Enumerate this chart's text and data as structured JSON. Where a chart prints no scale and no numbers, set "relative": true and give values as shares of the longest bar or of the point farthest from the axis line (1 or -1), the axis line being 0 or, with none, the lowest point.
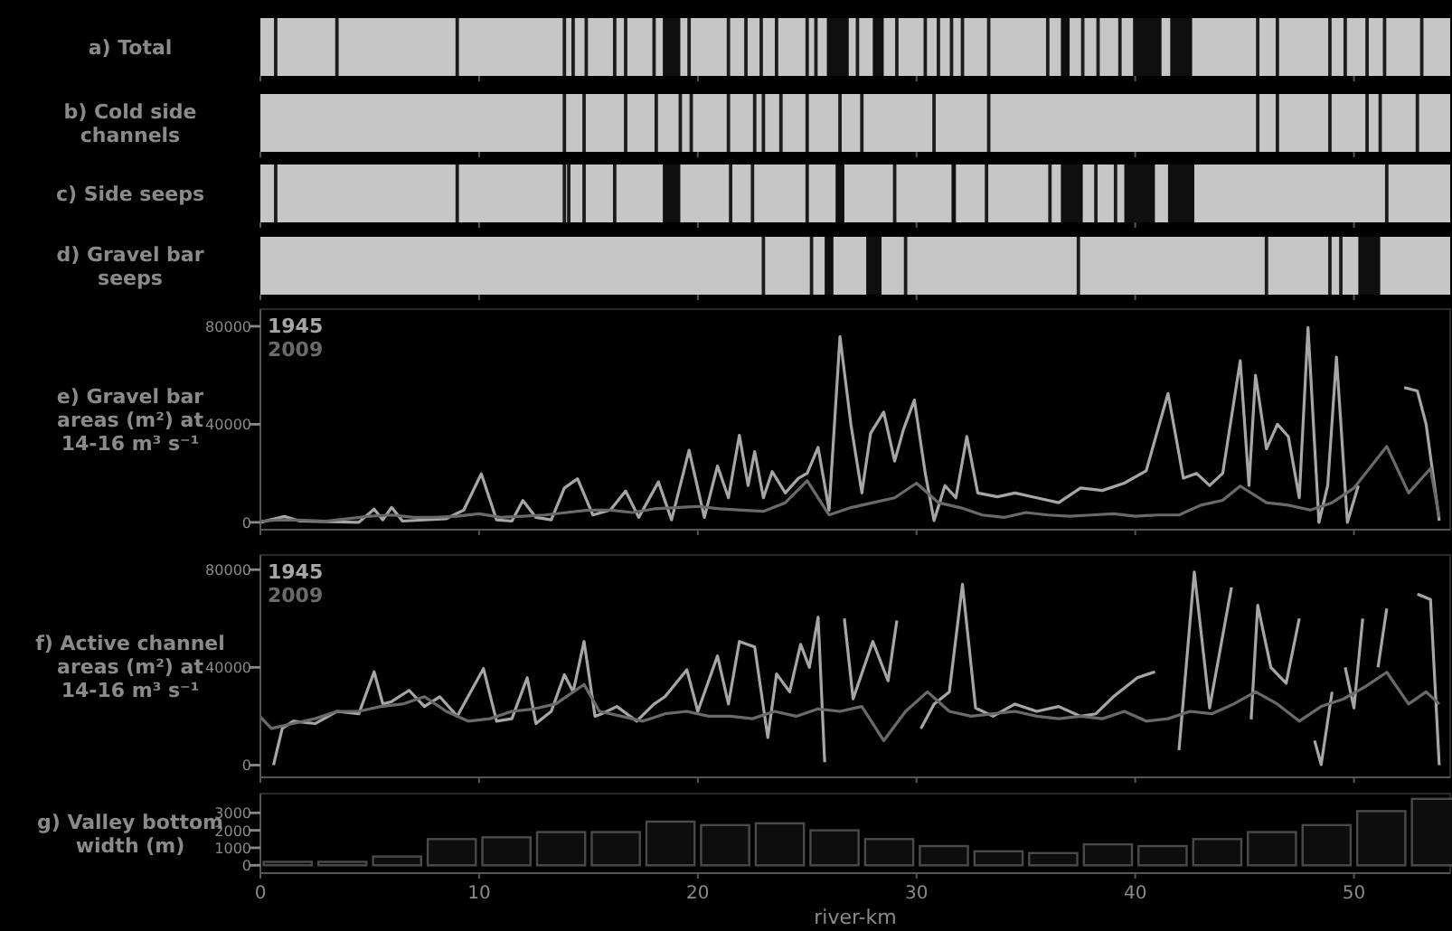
{
  "chart_data": [
    {
      "type": "bar",
      "relative": true,
      "ylabel": "a) Total",
      "xlim": [
        0,
        54.4
      ],
      "xticks": [
        0,
        10,
        20,
        30,
        40,
        50
      ],
      "tick_labels": false,
      "color": "#1c1c1c",
      "x": [
        0.7,
        3.5,
        9.0,
        13.9,
        14.3,
        14.9,
        16.2,
        16.7,
        18.0,
        19.6,
        21.4,
        22.2,
        22.9,
        23.6,
        25.0,
        25.4,
        27.3,
        29.1,
        30.4,
        31.0,
        31.6,
        32.1,
        33.3,
        36.0,
        37.6,
        38.3,
        39.3,
        45.6,
        46.5,
        48.9,
        49.6,
        50.6,
        51.4,
        53.1
      ],
      "values": [
        1,
        1,
        1,
        1,
        1,
        1,
        1,
        1,
        1,
        1,
        1,
        1,
        1,
        1,
        1,
        1,
        1,
        1,
        1,
        1,
        1,
        1,
        1,
        1,
        1,
        1,
        1,
        1,
        1,
        1,
        1,
        1,
        1,
        1
      ],
      "bands": [
        {
          "axis": "x",
          "from": 18.4,
          "to": 19.2,
          "color": "#050505"
        },
        {
          "axis": "x",
          "from": 25.9,
          "to": 26.9,
          "color": "#050505"
        },
        {
          "axis": "x",
          "from": 28.0,
          "to": 28.5,
          "color": "#050505"
        },
        {
          "axis": "x",
          "from": 36.6,
          "to": 37.0,
          "color": "#050505"
        },
        {
          "axis": "x",
          "from": 39.9,
          "to": 41.2,
          "color": "#050505"
        },
        {
          "axis": "x",
          "from": 41.6,
          "to": 42.6,
          "color": "#050505"
        }
      ]
    },
    {
      "type": "bar",
      "relative": true,
      "ylabel": "b) Cold side channels",
      "xlim": [
        0,
        54.4
      ],
      "xticks": [
        0,
        10,
        20,
        30,
        40,
        50
      ],
      "tick_labels": false,
      "color": "#1c1c1c",
      "x": [
        13.9,
        14.8,
        16.7,
        18.1,
        19.2,
        19.7,
        21.4,
        22.6,
        23.0,
        23.8,
        25.0,
        26.5,
        27.5,
        30.8,
        33.3,
        45.6,
        46.5,
        48.9,
        50.6,
        51.2,
        52.9
      ],
      "values": [
        1,
        1,
        1,
        1,
        1,
        1,
        1,
        1,
        1,
        1,
        1,
        1,
        1,
        1,
        1,
        1,
        1,
        1,
        1,
        1,
        1
      ]
    },
    {
      "type": "bar",
      "relative": true,
      "ylabel": "c) Side seeps",
      "xlim": [
        0,
        54.4
      ],
      "xticks": [
        0,
        10,
        20,
        30,
        40,
        50
      ],
      "tick_labels": false,
      "color": "#1c1c1c",
      "x": [
        0.7,
        9.0,
        13.9,
        14.1,
        14.8,
        16.2,
        21.5,
        22.5,
        25.0,
        29.0,
        33.2,
        36.1,
        38.2,
        39.1,
        51.5
      ],
      "values": [
        1,
        1,
        1,
        1,
        1,
        1,
        1,
        1,
        1,
        1,
        1,
        1,
        1,
        1,
        1
      ],
      "bands": [
        {
          "axis": "x",
          "from": 18.4,
          "to": 19.2,
          "color": "#050505"
        },
        {
          "axis": "x",
          "from": 26.3,
          "to": 26.7,
          "color": "#050505"
        },
        {
          "axis": "x",
          "from": 31.6,
          "to": 31.8,
          "color": "#050505"
        },
        {
          "axis": "x",
          "from": 36.6,
          "to": 37.6,
          "color": "#050505"
        },
        {
          "axis": "x",
          "from": 39.5,
          "to": 40.9,
          "color": "#050505"
        },
        {
          "axis": "x",
          "from": 41.5,
          "to": 42.7,
          "color": "#050505"
        }
      ]
    },
    {
      "type": "bar",
      "relative": true,
      "ylabel": "d) Gravel bar seeps",
      "xlim": [
        0,
        54.4
      ],
      "xticks": [
        0,
        10,
        20,
        30,
        40,
        50
      ],
      "tick_labels": false,
      "color": "#1c1c1c",
      "x": [
        23.0,
        25.2,
        29.5,
        37.4,
        46.0,
        48.9,
        49.4
      ],
      "values": [
        1,
        1,
        1,
        1,
        1,
        1,
        1
      ],
      "bands": [
        {
          "axis": "x",
          "from": 25.8,
          "to": 26.2,
          "color": "#050505"
        },
        {
          "axis": "x",
          "from": 27.7,
          "to": 28.4,
          "color": "#050505"
        },
        {
          "axis": "x",
          "from": 50.2,
          "to": 51.2,
          "color": "#050505"
        }
      ]
    },
    {
      "type": "line",
      "ylabel": "e) Gravel bar areas (m²) at 14-16 m³ s⁻¹",
      "xlim": [
        0,
        54.4
      ],
      "xticks": [
        0,
        10,
        20,
        30,
        40,
        50
      ],
      "ylim": [
        -3000,
        87000
      ],
      "yticks": [
        0,
        40000,
        80000
      ],
      "tick_labels": "y",
      "legend": "top left",
      "marker": "none",
      "line_style": "solid",
      "series": [
        {
          "name": "1945",
          "color": "#a6a6a6",
          "x": [
            0,
            1.1,
            1.8,
            4.5,
            5.2,
            5.6,
            6.0,
            6.5,
            8.5,
            9.3,
            10.1,
            10.8,
            11.5,
            12.0,
            12.6,
            13.3,
            13.9,
            14.5,
            15.2,
            16.0,
            16.7,
            17.3,
            18.2,
            18.8,
            19.6,
            20.3,
            20.9,
            21.4,
            21.9,
            22.3,
            22.6,
            23.0,
            23.4,
            24.0,
            24.6,
            25.0,
            25.5,
            26.0,
            26.5,
            27.0,
            27.5,
            27.9,
            28.5,
            29.0,
            29.4,
            29.9,
            30.4,
            30.8,
            31.3,
            31.8,
            32.3,
            32.8,
            33.7,
            34.5,
            35.5,
            36.5,
            37.5,
            38.5,
            39.5,
            40.5,
            41.5,
            42.2,
            42.8,
            43.4,
            44.0,
            44.8,
            45.2,
            45.5,
            46.0,
            46.5,
            47.0,
            47.5,
            47.9,
            48.4,
            48.8,
            49.2,
            49.7,
            50.2,
            50.6,
            51.0,
            51.5,
            51.9,
            52.3,
            52.9,
            53.3,
            53.9
          ],
          "values": [
            0,
            2400,
            500,
            0,
            5400,
            1000,
            6100,
            500,
            1500,
            5000,
            19800,
            1000,
            500,
            8900,
            2000,
            1000,
            14000,
            17800,
            3000,
            5000,
            12800,
            2000,
            16500,
            1000,
            29400,
            2000,
            23000,
            10000,
            35500,
            15000,
            28900,
            10000,
            20700,
            12000,
            18000,
            20000,
            30600,
            5000,
            75800,
            40000,
            12000,
            36300,
            45000,
            25000,
            37800,
            49900,
            20000,
            700,
            15000,
            10000,
            35000,
            12000,
            10400,
            12000,
            10000,
            8000,
            14000,
            13000,
            16000,
            21000,
            52600,
            18000,
            20000,
            15000,
            20000,
            65900,
            15000,
            60000,
            30000,
            40000,
            35000,
            10000,
            79500,
            0,
            15000,
            67400,
            0,
            15000,
            null,
            null,
            null,
            null,
            55000,
            53600,
            40000,
            700
          ]
        },
        {
          "name": "2009",
          "color": "#6a6a6a",
          "x": [
            0,
            1,
            2,
            3,
            4,
            5,
            6,
            7,
            8,
            9,
            10,
            11,
            12,
            13,
            14,
            15,
            16,
            17,
            18,
            19,
            20,
            21,
            22,
            23,
            24,
            25,
            26,
            27,
            28,
            29,
            30,
            31,
            32,
            33,
            34,
            35,
            36,
            37,
            38,
            39,
            40,
            41,
            42,
            43,
            44,
            44.8,
            46,
            47,
            48,
            49,
            50,
            51.5,
            52.5,
            53.5,
            53.9
          ],
          "values": [
            500,
            1000,
            800,
            500,
            1500,
            2500,
            3000,
            2000,
            2000,
            2500,
            3500,
            2000,
            2500,
            3000,
            4000,
            5000,
            5000,
            4000,
            5500,
            6000,
            6500,
            5500,
            5000,
            4500,
            8000,
            17000,
            3000,
            6000,
            8000,
            10000,
            16000,
            8000,
            6000,
            3000,
            2000,
            4000,
            3000,
            2500,
            3000,
            3500,
            2500,
            3000,
            3000,
            7000,
            9000,
            14800,
            8000,
            7000,
            5000,
            8000,
            14000,
            31000,
            12000,
            22000,
            2000
          ]
        }
      ]
    },
    {
      "type": "line",
      "ylabel": "f) Active channel areas (m²) at 14-16 m³ s⁻¹",
      "xlim": [
        0,
        54.4
      ],
      "xticks": [
        0,
        10,
        20,
        30,
        40,
        50
      ],
      "ylim": [
        -5000,
        86000
      ],
      "yticks": [
        0,
        40000,
        80000
      ],
      "tick_labels": "y",
      "legend": "top left",
      "marker": "none",
      "line_style": "solid",
      "series": [
        {
          "name": "1945",
          "color": "#a6a6a6",
          "x": [
            0.6,
            1.0,
            1.5,
            2.5,
            3.5,
            4.5,
            5.2,
            5.6,
            6.0,
            6.8,
            7.5,
            8.2,
            9.0,
            10.2,
            10.8,
            11.5,
            12.2,
            12.6,
            13.3,
            13.9,
            14.3,
            14.8,
            15.3,
            15.6,
            16.3,
            17.2,
            18.0,
            18.5,
            19.5,
            20.0,
            20.9,
            21.4,
            21.9,
            22.6,
            23.2,
            23.6,
            24.2,
            24.7,
            25.1,
            25.5,
            25.8,
            26.3,
            26.7,
            27.1,
            28.0,
            28.7,
            29.1,
            29.9,
            30.2,
            30.8,
            31.5,
            32.1,
            32.7,
            33.5,
            34.5,
            35.5,
            36.5,
            37.5,
            38.2,
            39.0,
            40.1,
            40.9,
            41.5,
            42.0,
            42.7,
            43.4,
            44.4,
            44.8,
            45.3,
            45.6,
            46.2,
            46.9,
            47.5,
            47.8,
            48.2,
            48.5,
            49.0,
            49.2,
            49.6,
            50.0,
            50.4,
            50.8,
            51.1,
            51.5,
            51.8,
            52.3,
            52.9,
            53.5,
            53.9
          ],
          "values": [
            0,
            15000,
            18000,
            17000,
            22000,
            21000,
            38200,
            25000,
            26000,
            30600,
            24000,
            28000,
            20000,
            39500,
            18000,
            19000,
            35800,
            17000,
            22000,
            37000,
            30000,
            50600,
            20000,
            21000,
            24000,
            18000,
            25000,
            28000,
            39000,
            22000,
            44700,
            25000,
            50600,
            48400,
            11300,
            37300,
            30000,
            49400,
            40000,
            60500,
            1200,
            null,
            60000,
            27100,
            50600,
            34500,
            59200,
            null,
            15000,
            25000,
            30000,
            74000,
            23400,
            20000,
            25000,
            22000,
            24000,
            20000,
            21000,
            28000,
            35800,
            38200,
            null,
            6100,
            79000,
            23400,
            72800,
            null,
            18700,
            65400,
            40000,
            33500,
            60000,
            null,
            10000,
            200,
            30000,
            null,
            40000,
            23400,
            60000,
            null,
            40000,
            64100,
            null,
            null,
            70000,
            67800,
            0
          ]
        },
        {
          "name": "2009",
          "color": "#6a6a6a",
          "x": [
            0,
            0.5,
            1.5,
            2.5,
            3.5,
            4.5,
            5.5,
            6.5,
            7.5,
            8.5,
            9.5,
            10.5,
            11.5,
            12.5,
            13.5,
            14.8,
            15.5,
            16.5,
            17.5,
            18.5,
            19.5,
            20.5,
            21.5,
            22.5,
            23.5,
            24.5,
            25.5,
            26.5,
            27.5,
            28.5,
            29.5,
            30.5,
            31.5,
            32.5,
            33.5,
            34.5,
            35.5,
            36.5,
            37.5,
            38.5,
            39.5,
            40.5,
            41.5,
            42.5,
            43.5,
            44.5,
            45.5,
            46.5,
            47.5,
            48.5,
            49.5,
            50.5,
            51.5,
            52.5,
            53.3,
            53.9
          ],
          "values": [
            19700,
            15000,
            17000,
            19000,
            22000,
            22000,
            24000,
            25000,
            28000,
            22000,
            18000,
            19000,
            22000,
            23000,
            25000,
            33000,
            22000,
            20000,
            18000,
            21000,
            22000,
            20000,
            20000,
            19000,
            22000,
            20000,
            23000,
            22000,
            24000,
            10000,
            22000,
            30000,
            22000,
            20000,
            21000,
            22000,
            20000,
            19000,
            20000,
            19000,
            22000,
            18000,
            19000,
            22000,
            21000,
            25000,
            30000,
            25000,
            18000,
            24000,
            27000,
            32000,
            38000,
            25000,
            30000,
            25000
          ]
        }
      ]
    },
    {
      "type": "bar",
      "ylabel": "g) Valley bottom width (m)",
      "xlabel": "river-km",
      "xlim": [
        0,
        54.4
      ],
      "xticks": [
        0,
        10,
        20,
        30,
        40,
        50
      ],
      "ylim": [
        -450,
        4100
      ],
      "yticks": [
        0,
        1000,
        2000,
        3000
      ],
      "color": "#4a4a4a",
      "x": [
        1.25,
        3.75,
        6.25,
        8.75,
        11.25,
        13.75,
        16.25,
        18.75,
        21.25,
        23.75,
        26.25,
        28.75,
        31.25,
        33.75,
        36.25,
        38.75,
        41.25,
        43.75,
        46.25,
        48.75,
        51.25,
        53.75
      ],
      "values": [
        200,
        200,
        500,
        1500,
        1600,
        1900,
        1900,
        2500,
        2300,
        2400,
        2000,
        1500,
        1100,
        800,
        700,
        1200,
        1100,
        1500,
        1900,
        2300,
        3100,
        3800
      ]
    }
  ]
}
